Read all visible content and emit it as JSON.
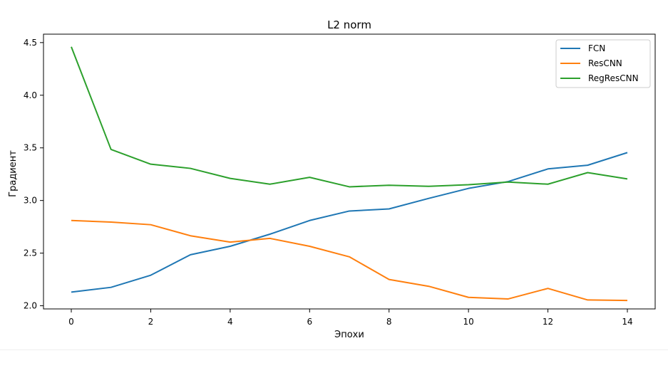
{
  "chart_data": {
    "type": "line",
    "title": "L2 norm",
    "xlabel": "Эпохи",
    "ylabel": "Градиент",
    "x": [
      0,
      1,
      2,
      3,
      4,
      5,
      6,
      7,
      8,
      9,
      10,
      11,
      12,
      13,
      14
    ],
    "xlim": [
      -0.7,
      14.7
    ],
    "ylim": [
      1.97,
      4.58
    ],
    "xticks": [
      "0",
      "2",
      "4",
      "6",
      "8",
      "10",
      "12",
      "14"
    ],
    "yticks": [
      "2.0",
      "2.5",
      "3.0",
      "3.5",
      "4.0",
      "4.5"
    ],
    "grid": false,
    "legend_position": "top-right",
    "series": [
      {
        "name": "FCN",
        "color": "#1f77b4",
        "values": [
          2.13,
          2.175,
          2.29,
          2.485,
          2.565,
          2.68,
          2.81,
          2.9,
          2.92,
          3.02,
          3.115,
          3.18,
          3.3,
          3.335,
          3.455
        ]
      },
      {
        "name": "ResCNN",
        "color": "#ff7f0e",
        "values": [
          2.81,
          2.795,
          2.77,
          2.665,
          2.605,
          2.64,
          2.565,
          2.465,
          2.25,
          2.185,
          2.08,
          2.065,
          2.165,
          2.055,
          2.05
        ]
      },
      {
        "name": "RegResCNN",
        "color": "#2ca02c",
        "values": [
          4.46,
          3.485,
          3.345,
          3.305,
          3.21,
          3.155,
          3.22,
          3.13,
          3.145,
          3.135,
          3.15,
          3.175,
          3.155,
          3.265,
          3.205
        ]
      }
    ]
  }
}
